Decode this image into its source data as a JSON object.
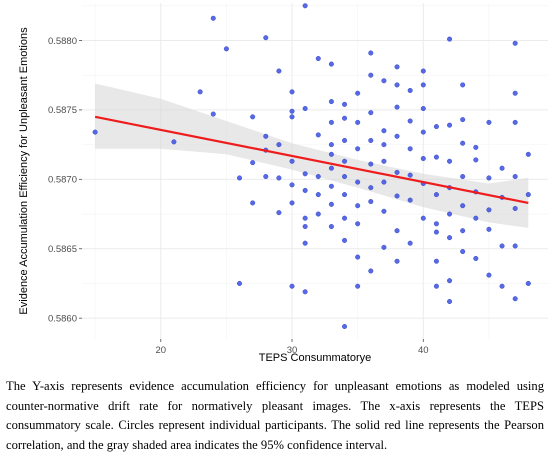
{
  "chart_data": {
    "type": "scatter",
    "title": "",
    "xlabel": "TEPS Consummatorye",
    "ylabel": "Evidence Accumulation Efficiency for Unpleasant Emotions",
    "xlim": [
      14,
      49.5
    ],
    "ylim": [
      0.58585,
      0.58827
    ],
    "x_ticks": [
      20,
      30,
      40
    ],
    "x_tick_labels": [
      "20",
      "30",
      "40"
    ],
    "y_ticks": [
      0.586,
      0.5865,
      0.587,
      0.5875,
      0.588
    ],
    "y_tick_labels": [
      "0.5860",
      "0.5865",
      "0.5870",
      "0.5875",
      "0.5880"
    ],
    "grid": true,
    "background": "#ffffff",
    "grid_color": "#ebebeb",
    "point_color": "#3b4fe0",
    "line_color": "#ee1c1c",
    "band_color": "#d9d9d9",
    "fit_line": {
      "x": [
        15,
        48
      ],
      "y": [
        0.58745,
        0.58683
      ]
    },
    "confidence_band": {
      "x": [
        15,
        20,
        25,
        30,
        35,
        40,
        45,
        48
      ],
      "lower": [
        0.58722,
        0.58722,
        0.58718,
        0.58707,
        0.58694,
        0.5868,
        0.58669,
        0.58665
      ],
      "upper": [
        0.58769,
        0.58758,
        0.58742,
        0.58726,
        0.58714,
        0.58704,
        0.58697,
        0.58701
      ]
    },
    "points": [
      {
        "x": 15,
        "y": 0.58734
      },
      {
        "x": 21,
        "y": 0.58727
      },
      {
        "x": 23,
        "y": 0.58763
      },
      {
        "x": 24,
        "y": 0.58816
      },
      {
        "x": 24,
        "y": 0.58747
      },
      {
        "x": 25,
        "y": 0.58794
      },
      {
        "x": 26,
        "y": 0.58701
      },
      {
        "x": 26,
        "y": 0.58625
      },
      {
        "x": 27,
        "y": 0.58745
      },
      {
        "x": 27,
        "y": 0.58683
      },
      {
        "x": 27,
        "y": 0.58712
      },
      {
        "x": 28,
        "y": 0.58802
      },
      {
        "x": 28,
        "y": 0.58731
      },
      {
        "x": 28,
        "y": 0.58702
      },
      {
        "x": 28,
        "y": 0.58721
      },
      {
        "x": 29,
        "y": 0.58778
      },
      {
        "x": 29,
        "y": 0.58725
      },
      {
        "x": 29,
        "y": 0.58676
      },
      {
        "x": 29,
        "y": 0.58701
      },
      {
        "x": 30,
        "y": 0.58749
      },
      {
        "x": 30,
        "y": 0.58763
      },
      {
        "x": 30,
        "y": 0.58696
      },
      {
        "x": 30,
        "y": 0.58623
      },
      {
        "x": 30,
        "y": 0.58713
      },
      {
        "x": 30,
        "y": 0.58745
      },
      {
        "x": 30,
        "y": 0.58683
      },
      {
        "x": 31,
        "y": 0.58825
      },
      {
        "x": 31,
        "y": 0.58751
      },
      {
        "x": 31,
        "y": 0.58704
      },
      {
        "x": 31,
        "y": 0.58692
      },
      {
        "x": 31,
        "y": 0.58672
      },
      {
        "x": 31,
        "y": 0.58654
      },
      {
        "x": 31,
        "y": 0.58619
      },
      {
        "x": 31,
        "y": 0.58666
      },
      {
        "x": 32,
        "y": 0.58732
      },
      {
        "x": 32,
        "y": 0.58787
      },
      {
        "x": 32,
        "y": 0.58702
      },
      {
        "x": 32,
        "y": 0.58675
      },
      {
        "x": 32,
        "y": 0.58689
      },
      {
        "x": 33,
        "y": 0.58756
      },
      {
        "x": 33,
        "y": 0.58741
      },
      {
        "x": 33,
        "y": 0.58718
      },
      {
        "x": 33,
        "y": 0.58708
      },
      {
        "x": 33,
        "y": 0.58695
      },
      {
        "x": 33,
        "y": 0.58682
      },
      {
        "x": 33,
        "y": 0.58666
      },
      {
        "x": 33,
        "y": 0.58783
      },
      {
        "x": 33,
        "y": 0.58725
      },
      {
        "x": 34,
        "y": 0.58754
      },
      {
        "x": 34,
        "y": 0.58728
      },
      {
        "x": 34,
        "y": 0.58713
      },
      {
        "x": 34,
        "y": 0.58702
      },
      {
        "x": 34,
        "y": 0.58689
      },
      {
        "x": 34,
        "y": 0.58672
      },
      {
        "x": 34,
        "y": 0.58656
      },
      {
        "x": 34,
        "y": 0.58594
      },
      {
        "x": 34,
        "y": 0.58744
      },
      {
        "x": 35,
        "y": 0.58762
      },
      {
        "x": 35,
        "y": 0.58741
      },
      {
        "x": 35,
        "y": 0.58722
      },
      {
        "x": 35,
        "y": 0.58698
      },
      {
        "x": 35,
        "y": 0.58681
      },
      {
        "x": 35,
        "y": 0.58644
      },
      {
        "x": 35,
        "y": 0.58623
      },
      {
        "x": 35,
        "y": 0.58668
      },
      {
        "x": 36,
        "y": 0.58791
      },
      {
        "x": 36,
        "y": 0.58775
      },
      {
        "x": 36,
        "y": 0.58748
      },
      {
        "x": 36,
        "y": 0.58728
      },
      {
        "x": 36,
        "y": 0.58711
      },
      {
        "x": 36,
        "y": 0.58694
      },
      {
        "x": 36,
        "y": 0.58634
      },
      {
        "x": 36,
        "y": 0.58684
      },
      {
        "x": 37,
        "y": 0.58771
      },
      {
        "x": 37,
        "y": 0.58735
      },
      {
        "x": 37,
        "y": 0.58713
      },
      {
        "x": 37,
        "y": 0.58698
      },
      {
        "x": 37,
        "y": 0.58677
      },
      {
        "x": 37,
        "y": 0.58651
      },
      {
        "x": 37,
        "y": 0.58725
      },
      {
        "x": 38,
        "y": 0.58781
      },
      {
        "x": 38,
        "y": 0.58752
      },
      {
        "x": 38,
        "y": 0.58731
      },
      {
        "x": 38,
        "y": 0.58705
      },
      {
        "x": 38,
        "y": 0.58688
      },
      {
        "x": 38,
        "y": 0.58663
      },
      {
        "x": 38,
        "y": 0.58641
      },
      {
        "x": 38,
        "y": 0.58768
      },
      {
        "x": 39,
        "y": 0.58764
      },
      {
        "x": 39,
        "y": 0.58742
      },
      {
        "x": 39,
        "y": 0.58722
      },
      {
        "x": 39,
        "y": 0.58703
      },
      {
        "x": 39,
        "y": 0.58685
      },
      {
        "x": 39,
        "y": 0.58654
      },
      {
        "x": 40,
        "y": 0.58778
      },
      {
        "x": 40,
        "y": 0.58768
      },
      {
        "x": 40,
        "y": 0.58734
      },
      {
        "x": 40,
        "y": 0.58715
      },
      {
        "x": 40,
        "y": 0.58697
      },
      {
        "x": 40,
        "y": 0.58672
      },
      {
        "x": 40,
        "y": 0.58751
      },
      {
        "x": 41,
        "y": 0.58738
      },
      {
        "x": 41,
        "y": 0.58716
      },
      {
        "x": 41,
        "y": 0.58689
      },
      {
        "x": 41,
        "y": 0.58668
      },
      {
        "x": 41,
        "y": 0.58662
      },
      {
        "x": 41,
        "y": 0.58641
      },
      {
        "x": 41,
        "y": 0.58623
      },
      {
        "x": 42,
        "y": 0.58801
      },
      {
        "x": 42,
        "y": 0.58739
      },
      {
        "x": 42,
        "y": 0.58713
      },
      {
        "x": 42,
        "y": 0.58694
      },
      {
        "x": 42,
        "y": 0.58675
      },
      {
        "x": 42,
        "y": 0.58658
      },
      {
        "x": 42,
        "y": 0.58612
      },
      {
        "x": 42,
        "y": 0.58627
      },
      {
        "x": 43,
        "y": 0.58768
      },
      {
        "x": 43,
        "y": 0.58743
      },
      {
        "x": 43,
        "y": 0.58726
      },
      {
        "x": 43,
        "y": 0.58702
      },
      {
        "x": 43,
        "y": 0.58681
      },
      {
        "x": 43,
        "y": 0.58663
      },
      {
        "x": 43,
        "y": 0.58648
      },
      {
        "x": 44,
        "y": 0.58723
      },
      {
        "x": 44,
        "y": 0.58691
      },
      {
        "x": 44,
        "y": 0.58672
      },
      {
        "x": 44,
        "y": 0.58643
      },
      {
        "x": 44,
        "y": 0.58714
      },
      {
        "x": 45,
        "y": 0.58741
      },
      {
        "x": 45,
        "y": 0.58701
      },
      {
        "x": 45,
        "y": 0.58664
      },
      {
        "x": 45,
        "y": 0.58631
      },
      {
        "x": 45,
        "y": 0.58678
      },
      {
        "x": 46,
        "y": 0.58687
      },
      {
        "x": 46,
        "y": 0.58652
      },
      {
        "x": 46,
        "y": 0.58623
      },
      {
        "x": 46,
        "y": 0.58708
      },
      {
        "x": 47,
        "y": 0.58798
      },
      {
        "x": 47,
        "y": 0.58762
      },
      {
        "x": 47,
        "y": 0.58741
      },
      {
        "x": 47,
        "y": 0.58702
      },
      {
        "x": 47,
        "y": 0.58679
      },
      {
        "x": 47,
        "y": 0.58652
      },
      {
        "x": 47,
        "y": 0.58614
      },
      {
        "x": 48,
        "y": 0.58718
      },
      {
        "x": 48,
        "y": 0.58689
      },
      {
        "x": 48,
        "y": 0.58625
      }
    ]
  },
  "caption": "The Y-axis represents evidence accumulation efficiency for unpleasant emotions as modeled using counter-normative drift rate for normatively pleasant images. The x-axis represents the TEPS consummatory scale. Circles represent individual participants. The solid red line represents the Pearson correlation, and the gray shaded area indicates the 95% confidence interval."
}
